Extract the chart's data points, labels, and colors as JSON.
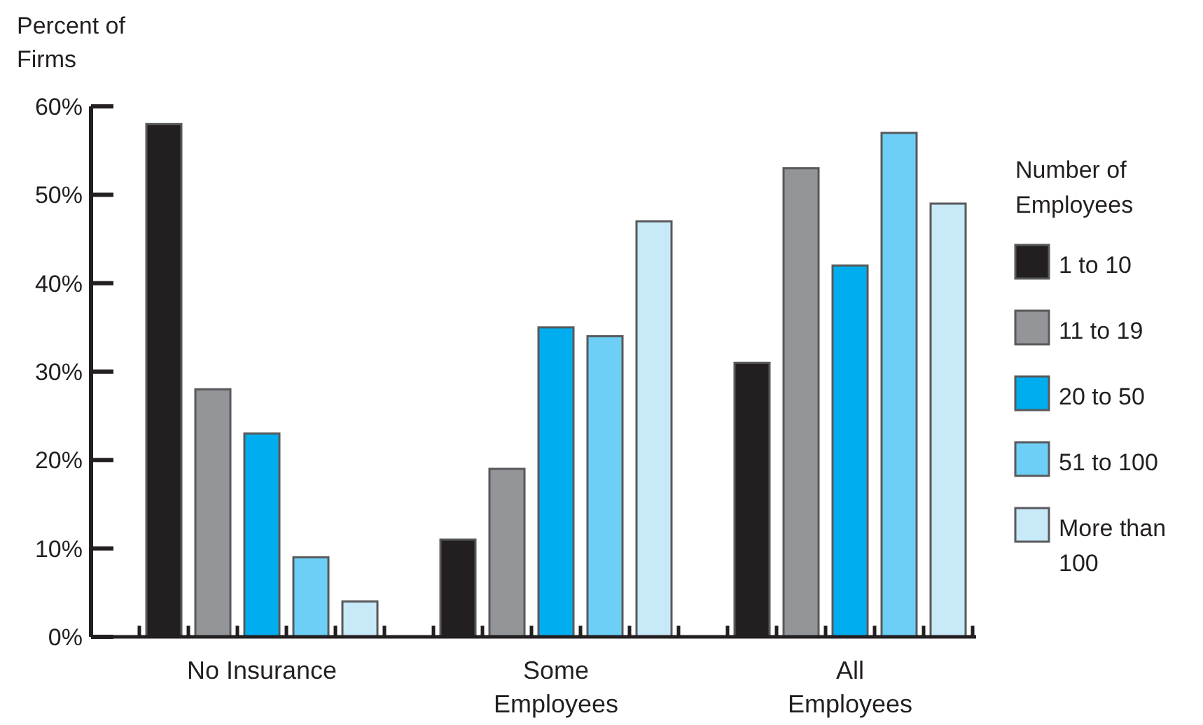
{
  "chart_data": {
    "type": "bar",
    "ylabel": "Percent of Firms",
    "legend_title": "Number of Employees",
    "categories": [
      "No Insurance",
      "Some Employees",
      "All Employees"
    ],
    "series": [
      {
        "name": "1 to 10",
        "color": "#231f20",
        "values": [
          58,
          11,
          31
        ]
      },
      {
        "name": "11 to 19",
        "color": "#939598",
        "values": [
          28,
          19,
          53
        ]
      },
      {
        "name": "20 to 50",
        "color": "#00aeef",
        "values": [
          23,
          35,
          42
        ]
      },
      {
        "name": "51 to 100",
        "color": "#6dcff6",
        "values": [
          9,
          34,
          57
        ]
      },
      {
        "name": "More than 100",
        "color": "#c7e9f8",
        "values": [
          4,
          47,
          49
        ]
      }
    ],
    "ylim": [
      0,
      60
    ],
    "yticks": [
      {
        "value": 0,
        "label": "0%"
      },
      {
        "value": 10,
        "label": "10%"
      },
      {
        "value": 20,
        "label": "20%"
      },
      {
        "value": 30,
        "label": "30%"
      },
      {
        "value": 40,
        "label": "40%"
      },
      {
        "value": 50,
        "label": "50%"
      },
      {
        "value": 60,
        "label": "60%"
      }
    ],
    "legend": "right",
    "grid": false
  }
}
